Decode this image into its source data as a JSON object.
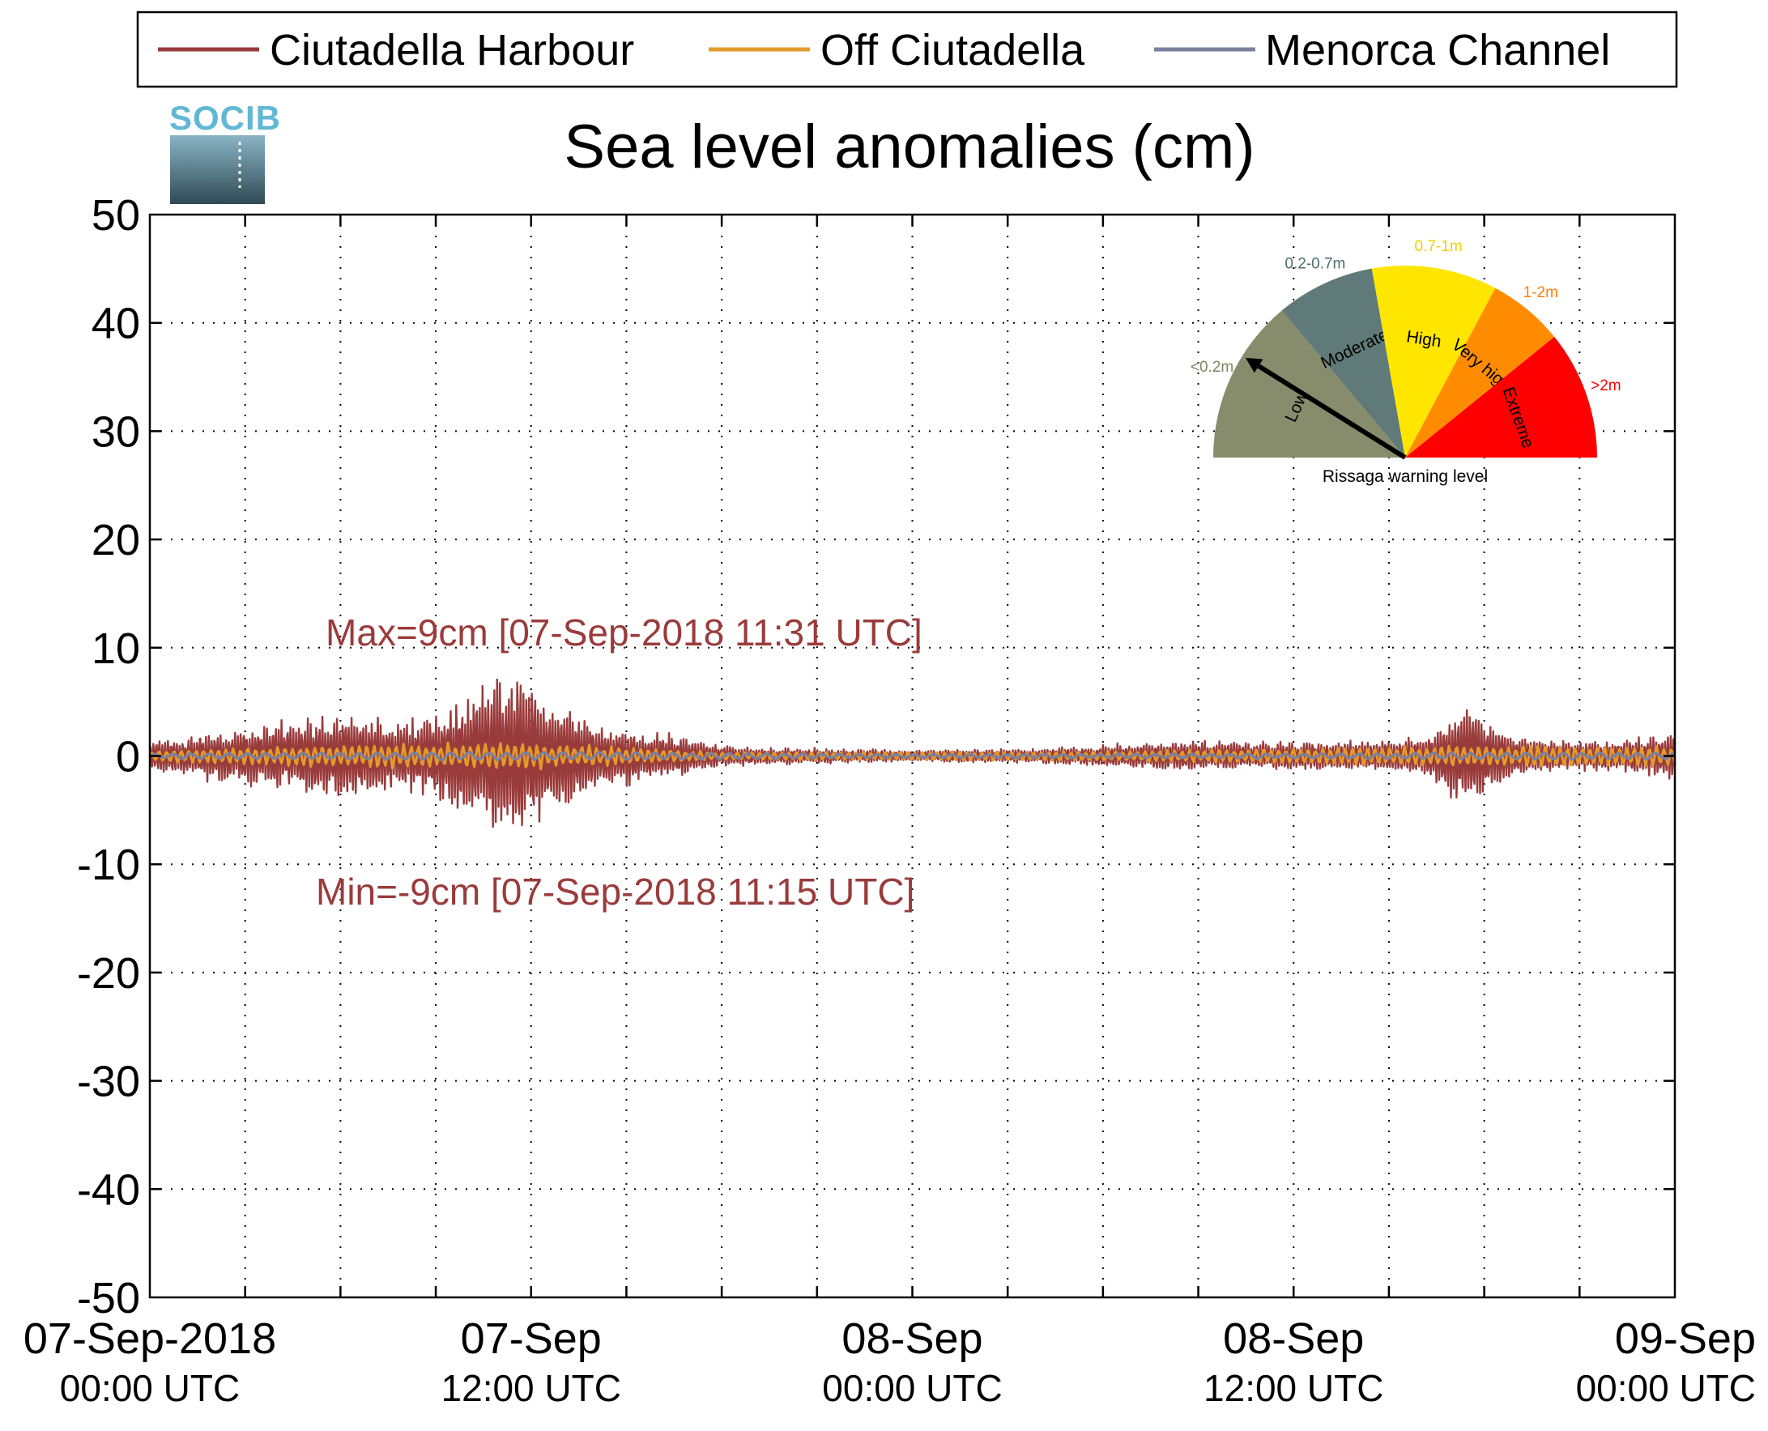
{
  "chart_data": {
    "type": "line",
    "title": "Sea level anomalies (cm)",
    "logo_text": "SOCIB",
    "ylim": [
      -50,
      50
    ],
    "yticks": [
      50,
      40,
      30,
      20,
      10,
      0,
      -10,
      -20,
      -30,
      -40,
      -50
    ],
    "xlim": [
      "2018-09-07T00:00",
      "2018-09-09T00:00"
    ],
    "xticks": [
      {
        "x": "2018-09-07T00:00",
        "line1": "07-Sep-2018",
        "line2": "00:00 UTC"
      },
      {
        "x": "2018-09-07T12:00",
        "line1": "07-Sep",
        "line2": "12:00 UTC"
      },
      {
        "x": "2018-09-08T00:00",
        "line1": "08-Sep",
        "line2": "00:00 UTC"
      },
      {
        "x": "2018-09-08T12:00",
        "line1": "08-Sep",
        "line2": "12:00 UTC"
      },
      {
        "x": "2018-09-09T00:00",
        "line1": "09-Sep",
        "line2": "00:00 UTC"
      }
    ],
    "grid": true,
    "legend_position": "top",
    "series": [
      {
        "name": "Ciutadella Harbour",
        "color": "#9a3b3b",
        "envelope": [
          {
            "x": "2018-09-07T00:00",
            "amp": 1.5
          },
          {
            "x": "2018-09-07T02:00",
            "amp": 2.5
          },
          {
            "x": "2018-09-07T04:00",
            "amp": 3.5
          },
          {
            "x": "2018-09-07T06:00",
            "amp": 4.5
          },
          {
            "x": "2018-09-07T08:00",
            "amp": 3.5
          },
          {
            "x": "2018-09-07T09:30",
            "amp": 5.5
          },
          {
            "x": "2018-09-07T11:30",
            "amp": 9
          },
          {
            "x": "2018-09-07T12:30",
            "amp": 6
          },
          {
            "x": "2018-09-07T14:00",
            "amp": 3.5
          },
          {
            "x": "2018-09-07T16:00",
            "amp": 2.5
          },
          {
            "x": "2018-09-07T18:00",
            "amp": 1
          },
          {
            "x": "2018-09-08T00:00",
            "amp": 0.6
          },
          {
            "x": "2018-09-08T04:00",
            "amp": 0.8
          },
          {
            "x": "2018-09-08T08:00",
            "amp": 1.5
          },
          {
            "x": "2018-09-08T14:00",
            "amp": 1.5
          },
          {
            "x": "2018-09-08T16:00",
            "amp": 2
          },
          {
            "x": "2018-09-08T17:30",
            "amp": 5.5
          },
          {
            "x": "2018-09-08T19:00",
            "amp": 2
          },
          {
            "x": "2018-09-08T22:00",
            "amp": 1.5
          },
          {
            "x": "2018-09-09T00:00",
            "amp": 2.5
          }
        ]
      },
      {
        "name": "Off Ciutadella",
        "color": "#e39a2c",
        "envelope": [
          {
            "x": "2018-09-07T00:00",
            "amp": 0.6
          },
          {
            "x": "2018-09-07T06:00",
            "amp": 1.2
          },
          {
            "x": "2018-09-07T12:00",
            "amp": 1.4
          },
          {
            "x": "2018-09-07T18:00",
            "amp": 0.4
          },
          {
            "x": "2018-09-08T06:00",
            "amp": 0.5
          },
          {
            "x": "2018-09-08T18:00",
            "amp": 1.2
          },
          {
            "x": "2018-09-09T00:00",
            "amp": 1
          }
        ]
      },
      {
        "name": "Menorca Channel",
        "color": "#7a819e",
        "envelope": [
          {
            "x": "2018-09-07T00:00",
            "amp": 0.3
          },
          {
            "x": "2018-09-07T12:00",
            "amp": 0.5
          },
          {
            "x": "2018-09-08T00:00",
            "amp": 0.2
          },
          {
            "x": "2018-09-09T00:00",
            "amp": 0.4
          }
        ]
      }
    ],
    "annotations": {
      "max": "Max=9cm [07-Sep-2018 11:31 UTC]",
      "min": "Min=-9cm [07-Sep-2018 11:15 UTC]",
      "color": "#9a3b3b"
    },
    "gauge": {
      "title": "Rissaga warning level",
      "current_level": "Low",
      "segments": [
        {
          "name": "Low",
          "range": "<0.2m",
          "color": "#878d6c",
          "range_color": "#7f8560"
        },
        {
          "name": "Moderate",
          "range": "0.2-0.7m",
          "color": "#5f7a78",
          "range_color": "#4a6e6c"
        },
        {
          "name": "High",
          "range": "0.7-1m",
          "color": "#ffe600",
          "range_color": "#f0d000"
        },
        {
          "name": "Very high",
          "range": "1-2m",
          "color": "#ff8c00",
          "range_color": "#ff8000"
        },
        {
          "name": "Extreme",
          "range": ">2m",
          "color": "#ff0000",
          "range_color": "#ff0000"
        }
      ]
    }
  }
}
